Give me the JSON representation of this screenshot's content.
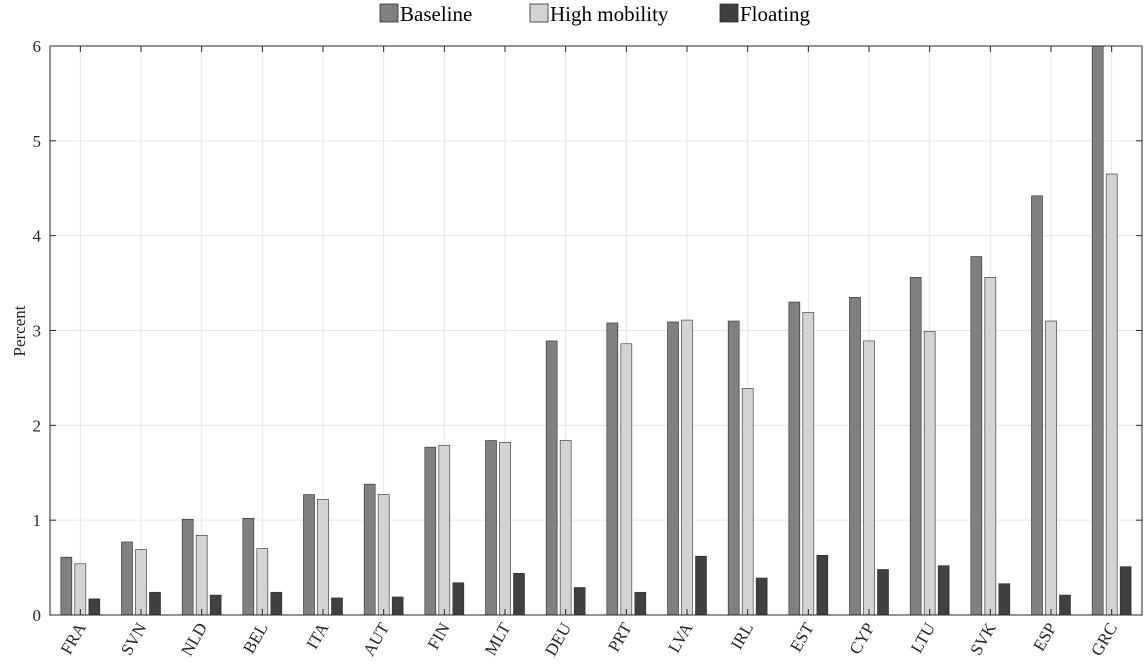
{
  "chart_data": {
    "type": "bar",
    "title": "",
    "xlabel": "",
    "ylabel": "Percent",
    "ylim": [
      0,
      6
    ],
    "yticks": [
      0,
      1,
      2,
      3,
      4,
      5,
      6
    ],
    "grid": true,
    "legend_position": "top",
    "categories": [
      "FRA",
      "SVN",
      "NLD",
      "BEL",
      "ITA",
      "AUT",
      "FIN",
      "MLT",
      "DEU",
      "PRT",
      "LVA",
      "IRL",
      "EST",
      "CYP",
      "LTU",
      "SVK",
      "ESP",
      "GRC"
    ],
    "series": [
      {
        "name": "Baseline",
        "color": "#808080",
        "values": [
          0.61,
          0.77,
          1.01,
          1.02,
          1.27,
          1.38,
          1.77,
          1.84,
          2.89,
          3.08,
          3.09,
          3.1,
          3.3,
          3.35,
          3.56,
          3.78,
          4.42,
          6.0
        ]
      },
      {
        "name": "High mobility",
        "color": "#d3d3d3",
        "values": [
          0.54,
          0.69,
          0.84,
          0.7,
          1.22,
          1.27,
          1.79,
          1.82,
          1.84,
          2.86,
          3.11,
          2.39,
          3.19,
          2.89,
          2.99,
          3.56,
          3.1,
          4.65
        ]
      },
      {
        "name": "Floating",
        "color": "#404040",
        "values": [
          0.17,
          0.24,
          0.21,
          0.24,
          0.18,
          0.19,
          0.34,
          0.44,
          0.29,
          0.24,
          0.62,
          0.39,
          0.63,
          0.48,
          0.52,
          0.33,
          0.21,
          0.51
        ]
      }
    ]
  }
}
